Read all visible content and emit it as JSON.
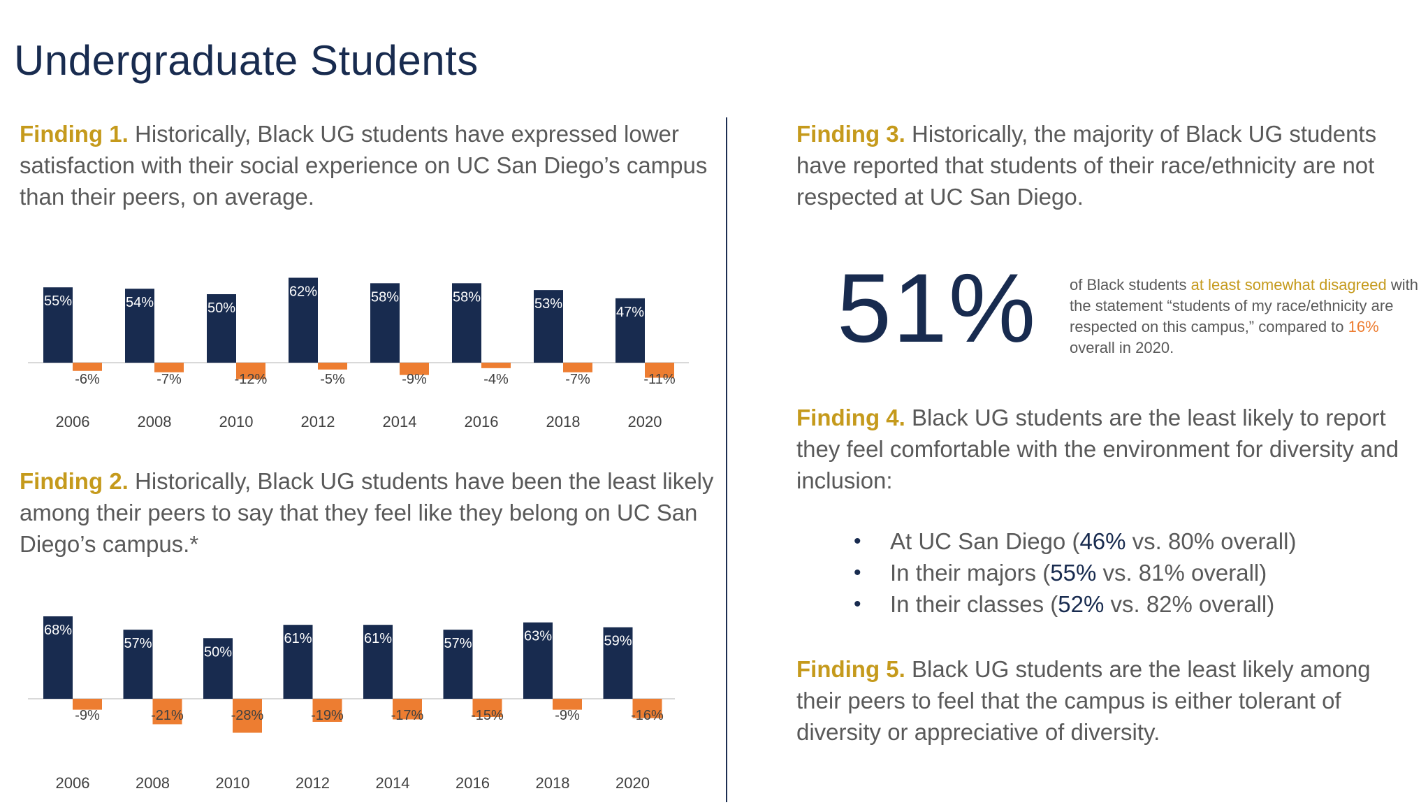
{
  "title": "Undergraduate Students",
  "findings": {
    "f1": {
      "label": "Finding 1.",
      "text": " Historically, Black UG students have expressed lower satisfaction with their social experience on UC San Diego’s campus than their peers, on average."
    },
    "f2": {
      "label": "Finding 2.",
      "text": " Historically, Black UG students have been the least likely among their peers to say that they feel like they belong on UC San Diego’s campus.*"
    },
    "f3": {
      "label": "Finding 3.",
      "text": " Historically, the majority of Black UG students have reported that students of their race/ethnicity are not respected at UC San Diego."
    },
    "f4": {
      "label": "Finding 4.",
      "text": " Black UG students are the least likely to report they feel comfortable with the environment for diversity and inclusion:"
    },
    "f5": {
      "label": "Finding 5.",
      "text": " Black UG students are the least likely among their peers to feel that the campus is either tolerant of diversity or appreciative of diversity."
    }
  },
  "stat": {
    "value": "51%",
    "desc_1": "of Black students ",
    "desc_highlight": "at least somewhat disagreed",
    "desc_2": " with the statement “students of my race/ethnicity are respected on this campus,” compared to ",
    "desc_overall": "16%",
    "desc_3": " overall in 2020."
  },
  "bullets": [
    {
      "pre": "At UC San Diego (",
      "value": "46%",
      "post": " vs. 80% overall)"
    },
    {
      "pre": "In their majors (",
      "value": "55%",
      "post": " vs. 81% overall)"
    },
    {
      "pre": "In their classes (",
      "value": "52%",
      "post": " vs. 82% overall)"
    }
  ],
  "colors": {
    "navy": "#182b4f",
    "orange": "#ed7d31",
    "gold": "#c59a1c",
    "text": "#595959"
  },
  "chart_data": [
    {
      "type": "bar",
      "categories": [
        "2006",
        "2008",
        "2010",
        "2012",
        "2014",
        "2016",
        "2018",
        "2020"
      ],
      "series": [
        {
          "values": [
            55,
            54,
            50,
            62,
            58,
            58,
            53,
            47
          ],
          "labels": [
            "55%",
            "54%",
            "50%",
            "62%",
            "58%",
            "58%",
            "53%",
            "47%"
          ],
          "color": "#182b4f"
        },
        {
          "values": [
            -6,
            -7,
            -12,
            -5,
            -9,
            -4,
            -7,
            -11
          ],
          "labels": [
            "-6%",
            "-7%",
            "-12%",
            "-5%",
            "-9%",
            "-4%",
            "-7%",
            "-11%"
          ],
          "color": "#ed7d31"
        }
      ],
      "ylim": [
        -15,
        65
      ],
      "grid": false,
      "legend": "none"
    },
    {
      "type": "bar",
      "categories": [
        "2006",
        "2008",
        "2010",
        "2012",
        "2014",
        "2016",
        "2018",
        "2020"
      ],
      "series": [
        {
          "values": [
            68,
            57,
            50,
            61,
            61,
            57,
            63,
            59
          ],
          "labels": [
            "68%",
            "57%",
            "50%",
            "61%",
            "61%",
            "57%",
            "63%",
            "59%"
          ],
          "color": "#182b4f"
        },
        {
          "values": [
            -9,
            -21,
            -28,
            -19,
            -17,
            -15,
            -9,
            -16
          ],
          "labels": [
            "-9%",
            "-21%",
            "-28%",
            "-19%",
            "-17%",
            "-15%",
            "-9%",
            "-16%"
          ],
          "color": "#ed7d31"
        }
      ],
      "ylim": [
        -30,
        70
      ],
      "grid": false,
      "legend": "none"
    }
  ]
}
